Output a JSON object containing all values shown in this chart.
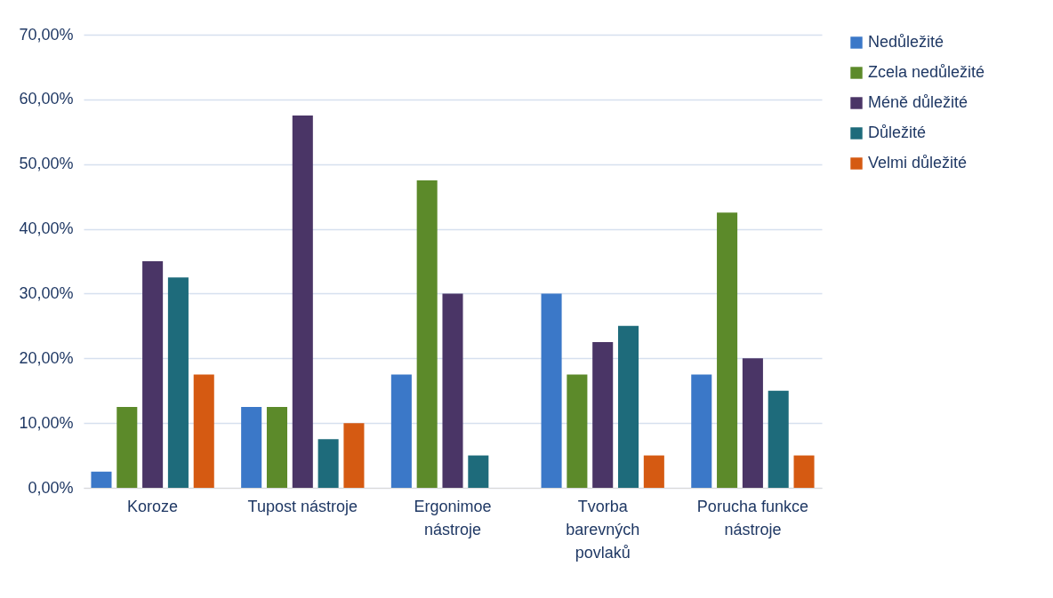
{
  "chart_data": {
    "type": "bar",
    "categories": [
      "Koroze",
      "Tupost nástroje",
      "Ergonimoe nástroje",
      "Tvorba barevných povlaků",
      "Porucha funkce nástroje"
    ],
    "series": [
      {
        "name": "Nedůležité",
        "color": "#3b78c8",
        "values": [
          2.5,
          12.5,
          17.5,
          30,
          17.5
        ]
      },
      {
        "name": "Zcela nedůležité",
        "color": "#5c8a2a",
        "values": [
          12.5,
          12.5,
          47.5,
          17.5,
          42.5
        ]
      },
      {
        "name": "Méně důležité",
        "color": "#4a3566",
        "values": [
          35,
          57.5,
          30,
          22.5,
          20
        ]
      },
      {
        "name": "Důležité",
        "color": "#1e6b7b",
        "values": [
          32.5,
          7.5,
          5,
          25,
          15
        ]
      },
      {
        "name": "Velmi důležité",
        "color": "#d55a12",
        "values": [
          17.5,
          10,
          0,
          5,
          5
        ]
      }
    ],
    "ylim": [
      0,
      70
    ],
    "yticks": [
      {
        "value": 0,
        "label": "0,00%"
      },
      {
        "value": 10,
        "label": "10,00%"
      },
      {
        "value": 20,
        "label": "20,00%"
      },
      {
        "value": 30,
        "label": "30,00%"
      },
      {
        "value": 40,
        "label": "40,00%"
      },
      {
        "value": 50,
        "label": "50,00%"
      },
      {
        "value": 60,
        "label": "60,00%"
      },
      {
        "value": 70,
        "label": "70,00%"
      }
    ],
    "grid": "y",
    "legend": "right"
  }
}
